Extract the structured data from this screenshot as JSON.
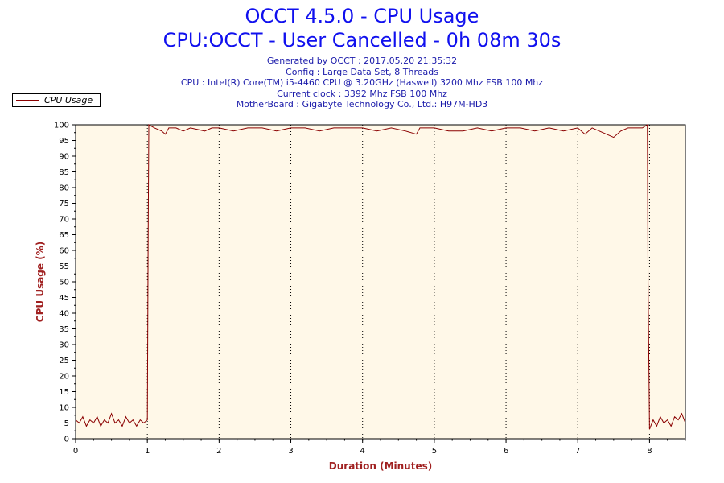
{
  "header": {
    "title": "OCCT 4.5.0 - CPU Usage",
    "subtitle": "CPU:OCCT - User Cancelled - 0h 08m 30s",
    "info_lines": [
      "Generated by OCCT : 2017.05.20 21:35:32",
      "Config : Large Data Set, 8 Threads",
      "CPU : Intel(R) Core(TM) i5-4460 CPU @ 3.20GHz (Haswell) 3200 Mhz FSB 100 Mhz",
      "Current clock : 3392 Mhz FSB 100 Mhz",
      "MotherBoard : Gigabyte Technology Co., Ltd.: H97M-HD3"
    ]
  },
  "legend": {
    "label": "CPU Usage"
  },
  "colors": {
    "plot_background": "#fff8e8",
    "series": "#8b0000",
    "axis_title": "#a02020",
    "title": "#1010ee"
  },
  "chart_data": {
    "type": "line",
    "xlabel": "Duration (Minutes)",
    "ylabel": "CPU Usage (%)",
    "xlim": [
      0,
      8.5
    ],
    "ylim": [
      0,
      100
    ],
    "x_ticks": [
      0,
      1,
      2,
      3,
      4,
      5,
      6,
      7,
      8
    ],
    "y_ticks": [
      0,
      5,
      10,
      15,
      20,
      25,
      30,
      35,
      40,
      45,
      50,
      55,
      60,
      65,
      70,
      75,
      80,
      85,
      90,
      95,
      100
    ],
    "grid": "vertical-dotted",
    "legend_position": "top-left",
    "series": [
      {
        "name": "CPU Usage",
        "points": [
          [
            0.0,
            6
          ],
          [
            0.05,
            5
          ],
          [
            0.1,
            7
          ],
          [
            0.15,
            4
          ],
          [
            0.2,
            6
          ],
          [
            0.25,
            5
          ],
          [
            0.3,
            7
          ],
          [
            0.35,
            4
          ],
          [
            0.4,
            6
          ],
          [
            0.45,
            5
          ],
          [
            0.5,
            8
          ],
          [
            0.55,
            5
          ],
          [
            0.6,
            6
          ],
          [
            0.65,
            4
          ],
          [
            0.7,
            7
          ],
          [
            0.75,
            5
          ],
          [
            0.8,
            6
          ],
          [
            0.85,
            4
          ],
          [
            0.9,
            6
          ],
          [
            0.95,
            5
          ],
          [
            1.0,
            6
          ],
          [
            1.01,
            60
          ],
          [
            1.02,
            100
          ],
          [
            1.1,
            99
          ],
          [
            1.2,
            98
          ],
          [
            1.25,
            97
          ],
          [
            1.3,
            99
          ],
          [
            1.4,
            99
          ],
          [
            1.5,
            98
          ],
          [
            1.6,
            99
          ],
          [
            1.8,
            98
          ],
          [
            1.9,
            99
          ],
          [
            2.0,
            99
          ],
          [
            2.2,
            98
          ],
          [
            2.4,
            99
          ],
          [
            2.6,
            99
          ],
          [
            2.8,
            98
          ],
          [
            3.0,
            99
          ],
          [
            3.2,
            99
          ],
          [
            3.4,
            98
          ],
          [
            3.6,
            99
          ],
          [
            3.8,
            99
          ],
          [
            4.0,
            99
          ],
          [
            4.2,
            98
          ],
          [
            4.4,
            99
          ],
          [
            4.6,
            98
          ],
          [
            4.75,
            97
          ],
          [
            4.8,
            99
          ],
          [
            5.0,
            99
          ],
          [
            5.2,
            98
          ],
          [
            5.4,
            98
          ],
          [
            5.6,
            99
          ],
          [
            5.8,
            98
          ],
          [
            6.0,
            99
          ],
          [
            6.2,
            99
          ],
          [
            6.4,
            98
          ],
          [
            6.6,
            99
          ],
          [
            6.8,
            98
          ],
          [
            7.0,
            99
          ],
          [
            7.1,
            97
          ],
          [
            7.2,
            99
          ],
          [
            7.3,
            98
          ],
          [
            7.4,
            97
          ],
          [
            7.5,
            96
          ],
          [
            7.6,
            98
          ],
          [
            7.7,
            99
          ],
          [
            7.8,
            99
          ],
          [
            7.9,
            99
          ],
          [
            7.97,
            100
          ],
          [
            7.98,
            50
          ],
          [
            8.0,
            3
          ],
          [
            8.05,
            6
          ],
          [
            8.1,
            4
          ],
          [
            8.15,
            7
          ],
          [
            8.2,
            5
          ],
          [
            8.25,
            6
          ],
          [
            8.3,
            4
          ],
          [
            8.35,
            7
          ],
          [
            8.4,
            6
          ],
          [
            8.45,
            8
          ],
          [
            8.5,
            5
          ]
        ]
      }
    ]
  }
}
